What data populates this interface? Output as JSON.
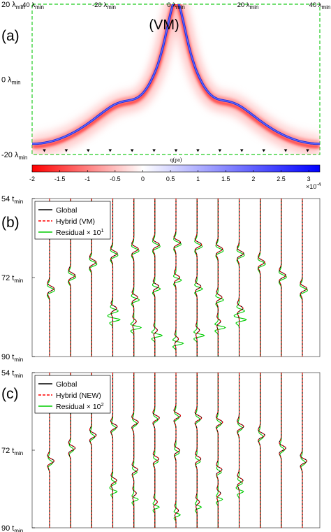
{
  "chart_data": [
    {
      "panel": "(a)",
      "type": "heatmap",
      "title": "(VM)",
      "x_ticks": [
        "-40 λ",
        "-20 λ",
        "0 λ",
        "20 λ",
        "40 λ"
      ],
      "x_tick_values": [
        -40,
        -20,
        0,
        20,
        40
      ],
      "x_tick_sub": "min",
      "y_ticks": [
        "20 λ",
        "0 λ",
        "-20 λ"
      ],
      "y_tick_values": [
        20,
        0,
        -20
      ],
      "y_tick_sub": "min",
      "xlim": [
        -40,
        40
      ],
      "ylim": [
        -20,
        20
      ],
      "xlabel": "q(pa)",
      "receiver_count": 13,
      "colorbar": {
        "ticks": [
          "-2",
          "-1.5",
          "-1",
          "-0.5",
          "0",
          "0.5",
          "1",
          "1.5",
          "2",
          "2.5",
          "3"
        ],
        "tick_values": [
          -2,
          -1.5,
          -1,
          -0.5,
          0,
          0.5,
          1,
          1.5,
          2,
          2.5,
          3
        ],
        "range": [
          -2,
          3.2
        ],
        "exponent": "×10",
        "exponent_power": "-4",
        "colors": {
          "negative": "#ff0000",
          "zero": "#ffffff",
          "positive": "#0000ff"
        }
      }
    },
    {
      "panel": "(b)",
      "type": "line",
      "y_ticks": [
        "54 t",
        "72 t",
        "90 t"
      ],
      "y_tick_values": [
        54,
        72,
        90
      ],
      "y_tick_sub": "min",
      "ylim": [
        54,
        90
      ],
      "trace_count": 13,
      "legend": {
        "placement": "top-left",
        "entries": [
          {
            "label": "Global",
            "color": "#000000",
            "style": "solid"
          },
          {
            "label": "Hybrid (VM)",
            "color": "#ff0000",
            "style": "dashed"
          },
          {
            "label": "Residual × 10",
            "sup": "1",
            "color": "#00cc00",
            "style": "solid"
          }
        ]
      },
      "arrival_times": [
        74.5,
        71.5,
        68.5,
        66.5,
        65.5,
        64.5,
        64.0,
        64.5,
        65.5,
        66.5,
        68.5,
        71.5,
        74.5
      ],
      "residual_scale": 1.0
    },
    {
      "panel": "(c)",
      "type": "line",
      "y_ticks": [
        "54 t",
        "72 t",
        "90 t"
      ],
      "y_tick_values": [
        54,
        72,
        90
      ],
      "y_tick_sub": "min",
      "ylim": [
        54,
        90
      ],
      "trace_count": 13,
      "legend": {
        "placement": "top-left",
        "entries": [
          {
            "label": "Global",
            "color": "#000000",
            "style": "solid"
          },
          {
            "label": "Hybrid (NEW)",
            "color": "#ff0000",
            "style": "dashed"
          },
          {
            "label": "Residual × 10",
            "sup": "2",
            "color": "#00cc00",
            "style": "solid"
          }
        ]
      },
      "arrival_times": [
        74.5,
        71.5,
        68.5,
        66.5,
        65.5,
        64.5,
        64.0,
        64.5,
        65.5,
        66.5,
        68.5,
        71.5,
        74.5
      ],
      "residual_scale": 0.6
    }
  ],
  "labels": {
    "a": "(a)",
    "b": "(b)",
    "c": "(c)"
  }
}
